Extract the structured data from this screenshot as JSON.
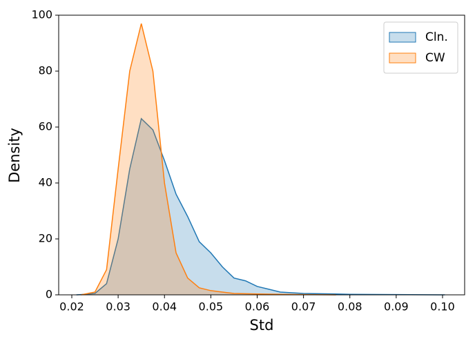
{
  "chart_data": {
    "type": "kde",
    "x_label": "Std",
    "y_label": "Density",
    "x": [
      0.021,
      0.022,
      0.025,
      0.0275,
      0.03,
      0.0325,
      0.035,
      0.0375,
      0.04,
      0.0425,
      0.045,
      0.0475,
      0.05,
      0.0525,
      0.055,
      0.0575,
      0.06,
      0.0625,
      0.065,
      0.07,
      0.077,
      0.08,
      0.09,
      0.1005
    ],
    "series": [
      {
        "name": "Cln.",
        "color": "#1f77b4",
        "values": [
          0,
          0.1,
          0.5,
          4,
          20,
          45,
          63,
          59,
          48,
          36,
          28,
          19,
          15,
          10,
          6,
          5,
          3,
          2,
          1,
          0.5,
          0.3,
          0.2,
          0.1,
          0
        ]
      },
      {
        "name": "CW",
        "color": "#ff7f0e",
        "values": [
          null,
          0,
          1,
          9,
          45,
          80,
          97,
          80,
          40,
          15,
          6,
          2.5,
          1.5,
          1,
          0.5,
          0.4,
          0.3,
          0.25,
          0.2,
          0.1,
          0,
          null,
          null,
          null
        ]
      }
    ],
    "xlim": [
      0.01717,
      0.10477
    ],
    "ylim": [
      0,
      100
    ],
    "xticks": [
      0.02,
      0.03,
      0.04,
      0.05,
      0.06,
      0.07,
      0.08,
      0.09,
      {
        "value": 0.1,
        "label": "0.10"
      }
    ],
    "yticks": [
      0,
      20,
      40,
      60,
      80,
      100
    ],
    "legend": "upper right"
  }
}
